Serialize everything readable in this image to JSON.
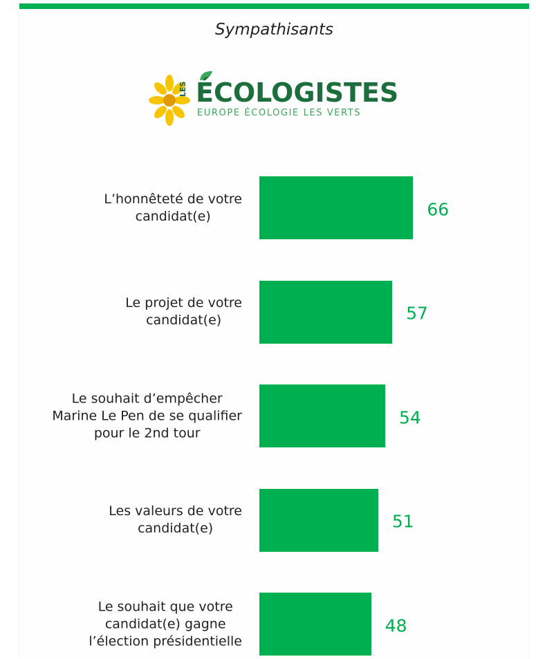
{
  "chart_data": {
    "type": "bar",
    "orientation": "horizontal",
    "title": "Sympathisants",
    "logo": {
      "prefix": "LES",
      "name": "ÉCOLOGISTES",
      "tagline": "EUROPE ÉCOLOGIE LES VERTS"
    },
    "categories": [
      "L’honnêteté de votre\ncandidat(e)",
      "Le projet de votre\ncandidat(e)",
      "Le souhait d’empêcher\nMarine Le Pen de se qualifier\npour le 2nd tour",
      "Les valeurs de votre\ncandidat(e)",
      "Le souhait que votre\ncandidat(e) gagne\nl’élection présidentielle"
    ],
    "values": [
      66,
      57,
      54,
      51,
      48
    ],
    "color": "#00b050"
  }
}
